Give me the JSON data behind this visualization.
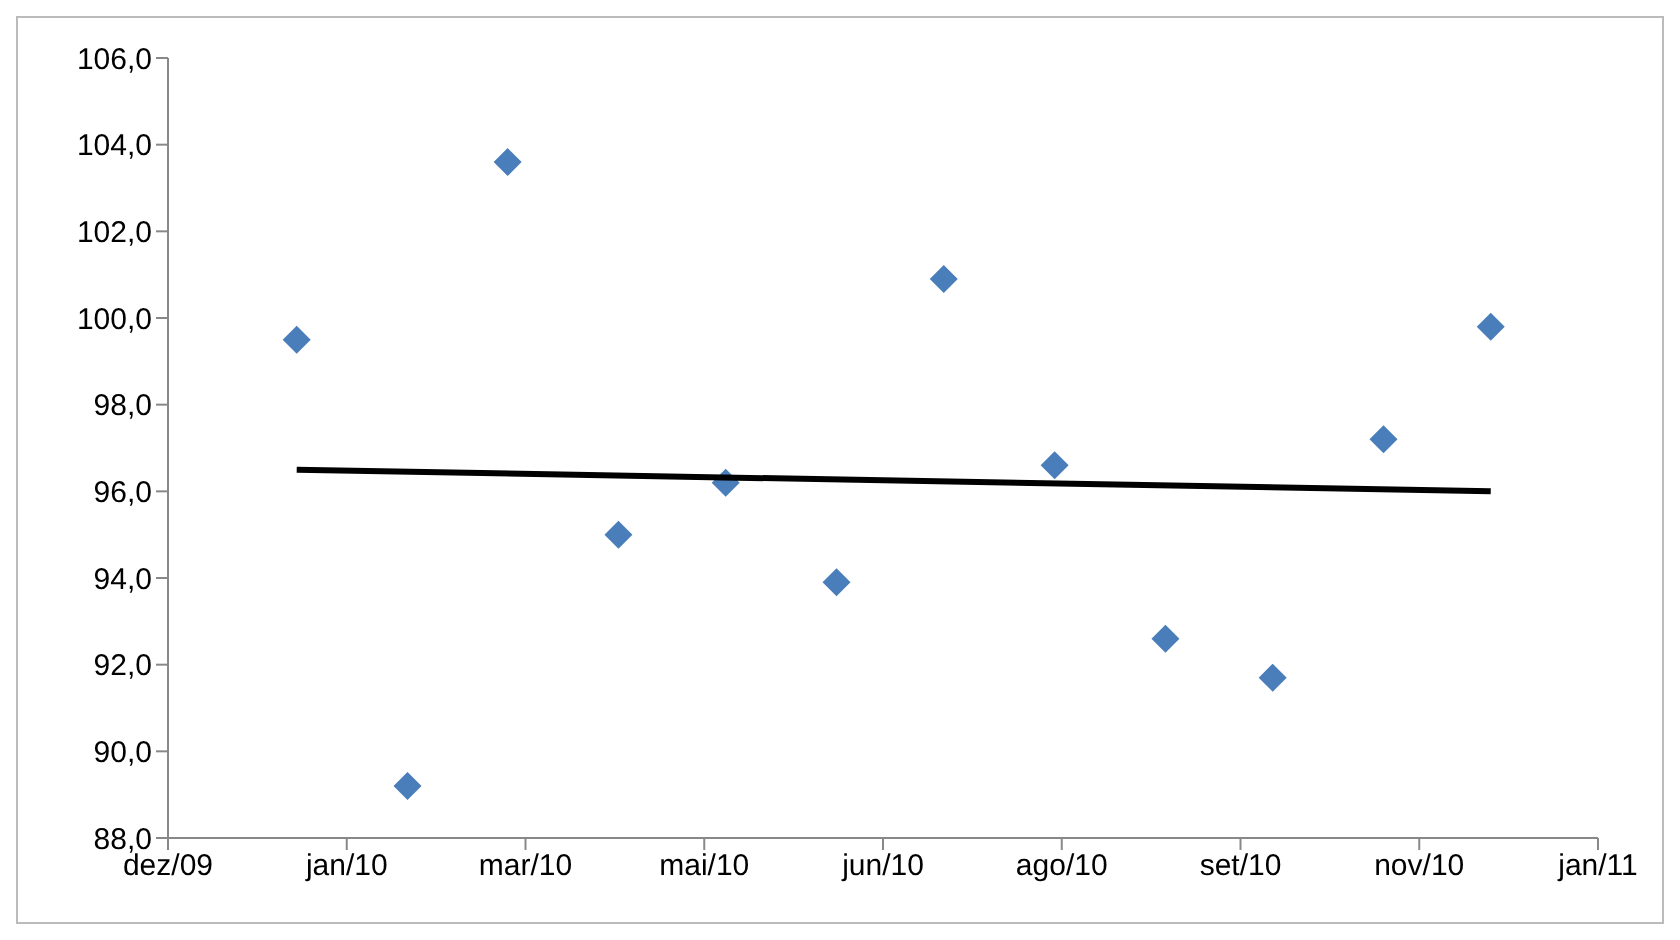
{
  "chart_data": {
    "type": "scatter",
    "xlim": [
      "2009-12-03",
      "2011-01-07"
    ],
    "xticks": [
      {
        "value": "2009-12-03",
        "label": "dez/09"
      },
      {
        "value": "2010-01-22",
        "label": "jan/10"
      },
      {
        "value": "2010-03-13",
        "label": "mar/10"
      },
      {
        "value": "2010-05-02",
        "label": "mai/10"
      },
      {
        "value": "2010-06-21",
        "label": "jun/10"
      },
      {
        "value": "2010-08-10",
        "label": "ago/10"
      },
      {
        "value": "2010-09-29",
        "label": "set/10"
      },
      {
        "value": "2010-11-18",
        "label": "nov/10"
      },
      {
        "value": "2011-01-07",
        "label": "jan/11"
      }
    ],
    "ylim": [
      88,
      106
    ],
    "yticks": [
      {
        "value": 88,
        "label": "88,0"
      },
      {
        "value": 90,
        "label": "90,0"
      },
      {
        "value": 92,
        "label": "92,0"
      },
      {
        "value": 94,
        "label": "94,0"
      },
      {
        "value": 96,
        "label": "96,0"
      },
      {
        "value": 98,
        "label": "98,0"
      },
      {
        "value": 100,
        "label": "100,0"
      },
      {
        "value": 102,
        "label": "102,0"
      },
      {
        "value": 104,
        "label": "104,0"
      },
      {
        "value": 106,
        "label": "106,0"
      }
    ],
    "series": [
      {
        "marker": "diamond",
        "color": "#4a7ebb",
        "x": [
          "2010-01-08",
          "2010-02-08",
          "2010-03-08",
          "2010-04-08",
          "2010-05-08",
          "2010-06-08",
          "2010-07-08",
          "2010-08-08",
          "2010-09-08",
          "2010-10-08",
          "2010-11-08",
          "2010-12-08"
        ],
        "values": [
          99.5,
          89.2,
          103.6,
          95.0,
          96.2,
          93.9,
          100.9,
          96.6,
          92.6,
          91.7,
          97.2,
          99.8
        ]
      },
      {
        "type": "line",
        "marker": "none",
        "color": "#000000",
        "x": [
          "2010-01-08",
          "2010-12-08"
        ],
        "values": [
          96.5,
          96.0
        ]
      }
    ]
  }
}
